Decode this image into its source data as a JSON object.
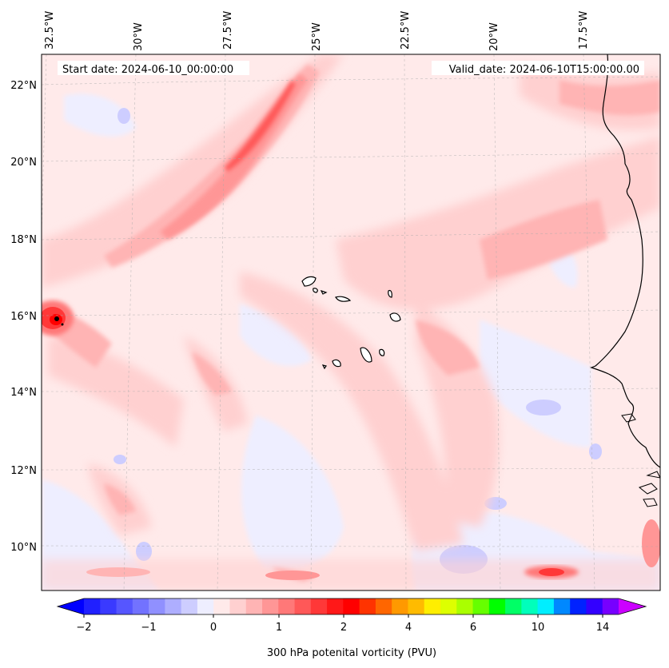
{
  "header": {
    "start_date": "Start date: 2024-06-10_00:00:00",
    "valid_date": "Valid_date: 2024-06-10T15:00:00.00"
  },
  "map": {
    "lon_labels": [
      "32.5°W",
      "30°W",
      "27.5°W",
      "25°W",
      "22.5°W",
      "20°W",
      "17.5°W"
    ],
    "lat_labels": [
      "22°N",
      "20°N",
      "18°N",
      "16°N",
      "14°N",
      "12°N",
      "10°N"
    ]
  },
  "colorbar": {
    "title": "300 hPa potenital vorticity (PVU)",
    "tick_labels": [
      "−2",
      "−1",
      "0",
      "1",
      "2",
      "4",
      "6",
      "10",
      "14"
    ],
    "colors": [
      "#2020ff",
      "#3a3aff",
      "#5656ff",
      "#7272ff",
      "#9090ff",
      "#aeaeff",
      "#cdcdff",
      "#eeeeff",
      "#ffeaea",
      "#ffd0d0",
      "#ffb4b4",
      "#ff9696",
      "#ff7878",
      "#ff5858",
      "#ff3838",
      "#ff1818",
      "#ff0000",
      "#ff3300",
      "#ff6600",
      "#ff9900",
      "#ffbb00",
      "#ffee00",
      "#ddff00",
      "#aaff00",
      "#66ff00",
      "#00ff00",
      "#00ff66",
      "#00ffbb",
      "#00eeff",
      "#0088ff",
      "#0022ff",
      "#3300ff",
      "#7700ff"
    ],
    "min_color": "#0000ff",
    "max_color": "#cc00ff"
  }
}
